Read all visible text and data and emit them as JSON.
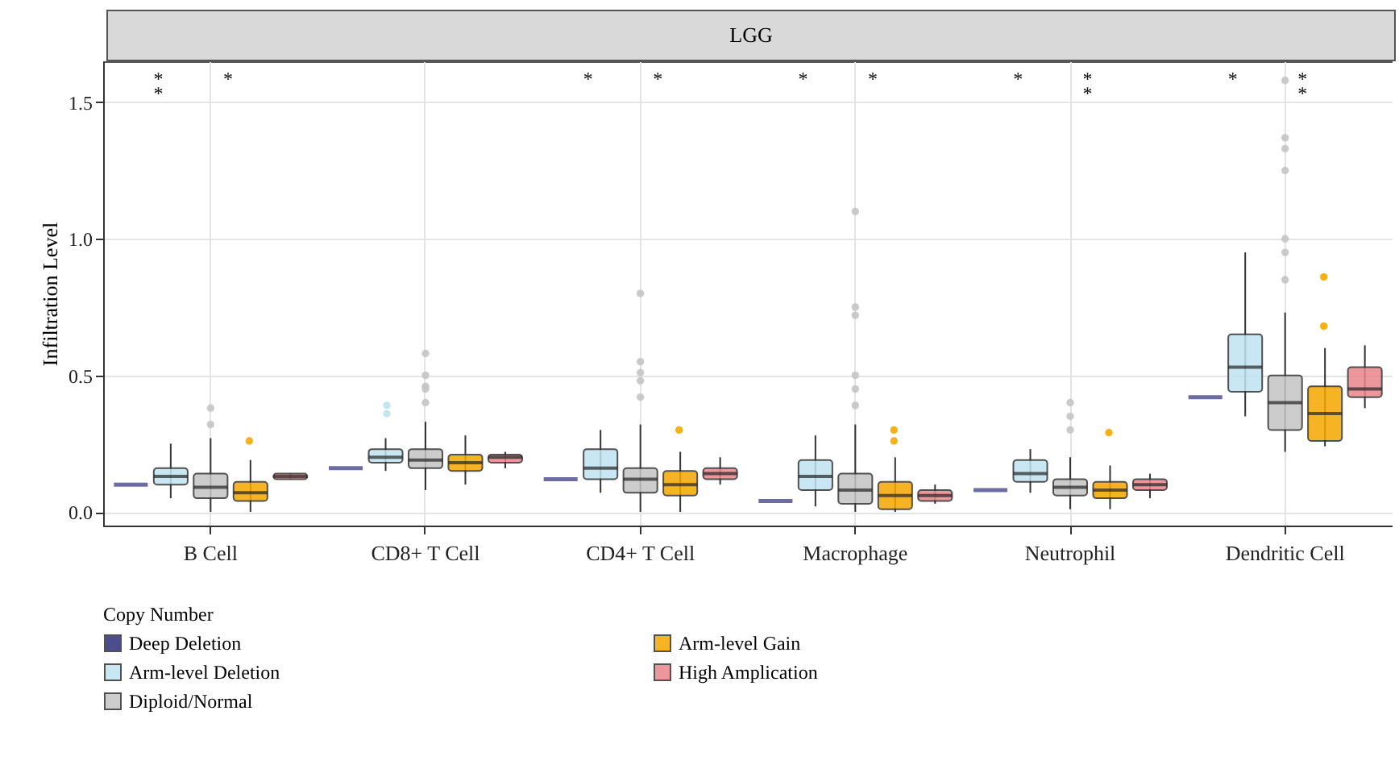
{
  "chart_data": {
    "type": "box",
    "title": "LGG",
    "ylabel": "Infiltration Level",
    "legend_title": "Copy Number",
    "categories": [
      "B Cell",
      "CD8+ T Cell",
      "CD4+ T Cell",
      "Macrophage",
      "Neutrophil",
      "Dendritic Cell"
    ],
    "ylim": [
      -0.05,
      1.65
    ],
    "yticks": [
      {
        "value": 0,
        "label": "0.0"
      },
      {
        "value": 0.5,
        "label": "0.5"
      },
      {
        "value": 1,
        "label": "1.0"
      },
      {
        "value": 1.5,
        "label": "1.5"
      }
    ],
    "grid": true,
    "legend": "bottom",
    "series": [
      {
        "name": "Deep Deletion",
        "color": "#2e2e7a",
        "boxes": [
          {
            "low": 0.1,
            "q1": 0.1,
            "median": 0.1,
            "q3": 0.1,
            "high": 0.1
          },
          {
            "low": 0.16,
            "q1": 0.16,
            "median": 0.16,
            "q3": 0.16,
            "high": 0.16
          },
          {
            "low": 0.12,
            "q1": 0.12,
            "median": 0.12,
            "q3": 0.12,
            "high": 0.12
          },
          {
            "low": 0.04,
            "q1": 0.04,
            "median": 0.04,
            "q3": 0.04,
            "high": 0.04
          },
          {
            "low": 0.08,
            "q1": 0.08,
            "median": 0.08,
            "q3": 0.08,
            "high": 0.08
          },
          {
            "low": 0.42,
            "q1": 0.42,
            "median": 0.42,
            "q3": 0.42,
            "high": 0.42
          }
        ]
      },
      {
        "name": "Arm-level Deletion",
        "color": "#bfe3f0",
        "boxes": [
          {
            "low": 0.05,
            "q1": 0.1,
            "median": 0.13,
            "q3": 0.16,
            "high": 0.25
          },
          {
            "low": 0.15,
            "q1": 0.18,
            "median": 0.2,
            "q3": 0.23,
            "high": 0.27,
            "outliers": [
              0.36,
              0.39
            ]
          },
          {
            "low": 0.07,
            "q1": 0.12,
            "median": 0.16,
            "q3": 0.23,
            "high": 0.3
          },
          {
            "low": 0.02,
            "q1": 0.08,
            "median": 0.13,
            "q3": 0.19,
            "high": 0.28
          },
          {
            "low": 0.07,
            "q1": 0.11,
            "median": 0.14,
            "q3": 0.19,
            "high": 0.23
          },
          {
            "low": 0.35,
            "q1": 0.44,
            "median": 0.53,
            "q3": 0.65,
            "high": 0.95
          }
        ]
      },
      {
        "name": "Diploid/Normal",
        "color": "#c4c4c4",
        "boxes": [
          {
            "low": 0.0,
            "q1": 0.05,
            "median": 0.09,
            "q3": 0.14,
            "high": 0.27,
            "outliers": [
              0.32,
              0.38
            ]
          },
          {
            "low": 0.08,
            "q1": 0.16,
            "median": 0.19,
            "q3": 0.23,
            "high": 0.33,
            "outliers": [
              0.4,
              0.45,
              0.46,
              0.5,
              0.58
            ]
          },
          {
            "low": 0.0,
            "q1": 0.07,
            "median": 0.12,
            "q3": 0.16,
            "high": 0.32,
            "outliers": [
              0.42,
              0.48,
              0.51,
              0.55,
              0.8
            ]
          },
          {
            "low": 0.0,
            "q1": 0.03,
            "median": 0.08,
            "q3": 0.14,
            "high": 0.32,
            "outliers": [
              0.39,
              0.45,
              0.5,
              0.72,
              0.75,
              1.1
            ]
          },
          {
            "low": 0.01,
            "q1": 0.06,
            "median": 0.09,
            "q3": 0.12,
            "high": 0.2,
            "outliers": [
              0.3,
              0.35,
              0.4
            ]
          },
          {
            "low": 0.22,
            "q1": 0.3,
            "median": 0.4,
            "q3": 0.5,
            "high": 0.73,
            "outliers": [
              0.85,
              0.95,
              1.0,
              1.25,
              1.33,
              1.37,
              1.58
            ]
          }
        ]
      },
      {
        "name": "Arm-level Gain",
        "color": "#f5a800",
        "boxes": [
          {
            "low": 0.0,
            "q1": 0.04,
            "median": 0.07,
            "q3": 0.11,
            "high": 0.19,
            "outliers": [
              0.26
            ]
          },
          {
            "low": 0.1,
            "q1": 0.15,
            "median": 0.18,
            "q3": 0.21,
            "high": 0.28
          },
          {
            "low": 0.0,
            "q1": 0.06,
            "median": 0.1,
            "q3": 0.15,
            "high": 0.22,
            "outliers": [
              0.3
            ]
          },
          {
            "low": 0.0,
            "q1": 0.01,
            "median": 0.06,
            "q3": 0.11,
            "high": 0.2,
            "outliers": [
              0.26,
              0.3
            ]
          },
          {
            "low": 0.01,
            "q1": 0.05,
            "median": 0.08,
            "q3": 0.11,
            "high": 0.17,
            "outliers": [
              0.29
            ]
          },
          {
            "low": 0.24,
            "q1": 0.26,
            "median": 0.36,
            "q3": 0.46,
            "high": 0.6,
            "outliers": [
              0.68,
              0.86
            ]
          }
        ]
      },
      {
        "name": "High Amplication",
        "color": "#e8868a",
        "boxes": [
          {
            "low": 0.12,
            "q1": 0.12,
            "median": 0.13,
            "q3": 0.14,
            "high": 0.14
          },
          {
            "low": 0.16,
            "q1": 0.18,
            "median": 0.2,
            "q3": 0.21,
            "high": 0.22
          },
          {
            "low": 0.1,
            "q1": 0.12,
            "median": 0.14,
            "q3": 0.16,
            "high": 0.2
          },
          {
            "low": 0.03,
            "q1": 0.04,
            "median": 0.06,
            "q3": 0.08,
            "high": 0.1
          },
          {
            "low": 0.05,
            "q1": 0.08,
            "median": 0.1,
            "q3": 0.12,
            "high": 0.14
          },
          {
            "low": 0.38,
            "q1": 0.42,
            "median": 0.45,
            "q3": 0.53,
            "high": 0.61
          }
        ]
      }
    ],
    "annotations": [
      "*",
      "*",
      "*",
      "*",
      "*",
      "*",
      "*",
      "*",
      "*",
      "*",
      "*",
      "*",
      "*"
    ]
  }
}
